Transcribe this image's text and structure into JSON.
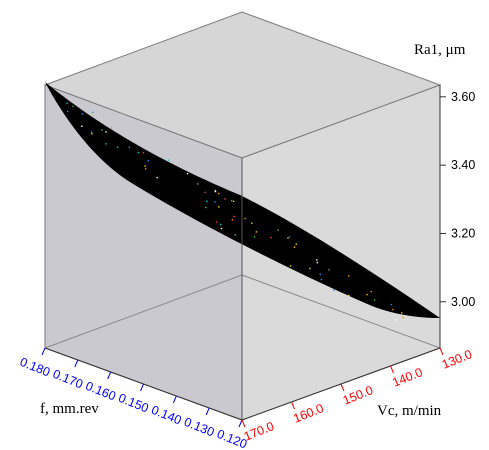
{
  "chart_data": {
    "type": "surface3d",
    "title": "",
    "zlabel": "Ra1, μm",
    "xlabel": "f, mm.rev",
    "ylabel": "Vc, m/min",
    "z_ticks": [
      "3.60",
      "3.40",
      "3.20",
      "3.00"
    ],
    "x_ticks": [
      "0.180",
      "0.170",
      "0.160",
      "0.150",
      "0.140",
      "0.130",
      "0.120"
    ],
    "y_ticks": [
      "170.0",
      "160.0",
      "150.0",
      "140.0",
      "130.0"
    ],
    "xlim": [
      0.12,
      0.18
    ],
    "ylim": [
      130.0,
      170.0
    ],
    "zlim": [
      2.85,
      3.62
    ],
    "surface": {
      "description_points": [
        {
          "f": 0.18,
          "Vc": 170.0,
          "Ra": 3.6
        },
        {
          "f": 0.15,
          "Vc": 150.0,
          "Ra": 3.23
        },
        {
          "f": 0.12,
          "Vc": 130.0,
          "Ra": 2.93
        }
      ]
    },
    "grid": false,
    "colors": {
      "surface": "#000000",
      "x_ticks": "#0000ff",
      "y_ticks": "#ff0000",
      "z_ticks": "#000000",
      "panel_top": "#d6d6d6",
      "panel_left": "#c9c9cf",
      "panel_right": "#dadada",
      "floor": "#e8e8e8"
    }
  }
}
